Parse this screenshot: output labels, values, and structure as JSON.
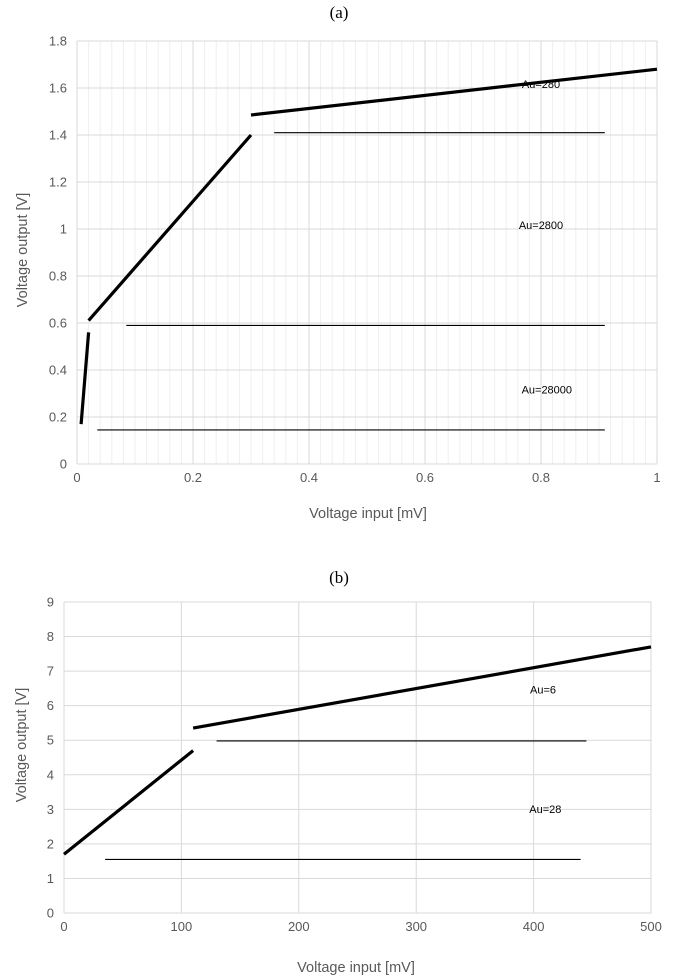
{
  "chart_data": [
    {
      "type": "line",
      "panel_label": "(a)",
      "xlabel": "Voltage input [mV]",
      "ylabel": "Voltage output  [V]",
      "xlim": [
        0,
        1
      ],
      "ylim": [
        0,
        1.8
      ],
      "x_ticks": [
        0,
        0.2,
        0.4,
        0.6,
        0.8,
        1
      ],
      "x_tick_labels": [
        "0",
        "0.2",
        "0.4",
        "0.6",
        "0.8",
        "1"
      ],
      "y_ticks": [
        0,
        0.2,
        0.4,
        0.6,
        0.8,
        1.0,
        1.2,
        1.4,
        1.6,
        1.8
      ],
      "y_tick_labels": [
        "0",
        "0.2",
        "0.4",
        "0.6",
        "0.8",
        "1",
        "1.2",
        "1.4",
        "1.6",
        "1.8"
      ],
      "grid": true,
      "minor_grid_x": true,
      "series": [
        {
          "style": "thick",
          "points": [
            [
              0.007,
              0.17
            ],
            [
              0.02,
              0.56
            ]
          ]
        },
        {
          "style": "thick",
          "points": [
            [
              0.02,
              0.61
            ],
            [
              0.3,
              1.4
            ]
          ]
        },
        {
          "style": "thick",
          "points": [
            [
              0.3,
              1.485
            ],
            [
              1.0,
              1.68
            ]
          ]
        },
        {
          "style": "thin",
          "points": [
            [
              0.035,
              0.145
            ],
            [
              0.91,
              0.145
            ]
          ]
        },
        {
          "style": "thin",
          "points": [
            [
              0.085,
              0.59
            ],
            [
              0.91,
              0.59
            ]
          ]
        },
        {
          "style": "thin",
          "points": [
            [
              0.34,
              1.41
            ],
            [
              0.91,
              1.41
            ]
          ]
        }
      ],
      "annotations": [
        {
          "text": "Au=280",
          "x": 0.8,
          "y": 1.6
        },
        {
          "text": "Au=2800",
          "x": 0.8,
          "y": 1.0
        },
        {
          "text": "Au=28000",
          "x": 0.81,
          "y": 0.3
        }
      ]
    },
    {
      "type": "line",
      "panel_label": "(b)",
      "xlabel": "Voltage input [mV]",
      "ylabel": "Voltage output [V]",
      "xlim": [
        0,
        500
      ],
      "ylim": [
        0,
        9
      ],
      "x_ticks": [
        0,
        100,
        200,
        300,
        400,
        500
      ],
      "x_tick_labels": [
        "0",
        "100",
        "200",
        "300",
        "400",
        "500"
      ],
      "y_ticks": [
        0,
        1,
        2,
        3,
        4,
        5,
        6,
        7,
        8,
        9
      ],
      "y_tick_labels": [
        "0",
        "1",
        "2",
        "3",
        "4",
        "5",
        "6",
        "7",
        "8",
        "9"
      ],
      "grid": true,
      "minor_grid_x": false,
      "series": [
        {
          "style": "thick",
          "points": [
            [
              0,
              1.7
            ],
            [
              110,
              4.7
            ]
          ]
        },
        {
          "style": "thick",
          "points": [
            [
              110,
              5.35
            ],
            [
              500,
              7.7
            ]
          ]
        },
        {
          "style": "thin",
          "points": [
            [
              35,
              1.55
            ],
            [
              440,
              1.55
            ]
          ]
        },
        {
          "style": "thin",
          "points": [
            [
              130,
              4.98
            ],
            [
              445,
              4.98
            ]
          ]
        }
      ],
      "annotations": [
        {
          "text": "Au=6",
          "x": 408,
          "y": 6.35
        },
        {
          "text": "Au=28",
          "x": 410,
          "y": 2.9
        }
      ]
    }
  ]
}
